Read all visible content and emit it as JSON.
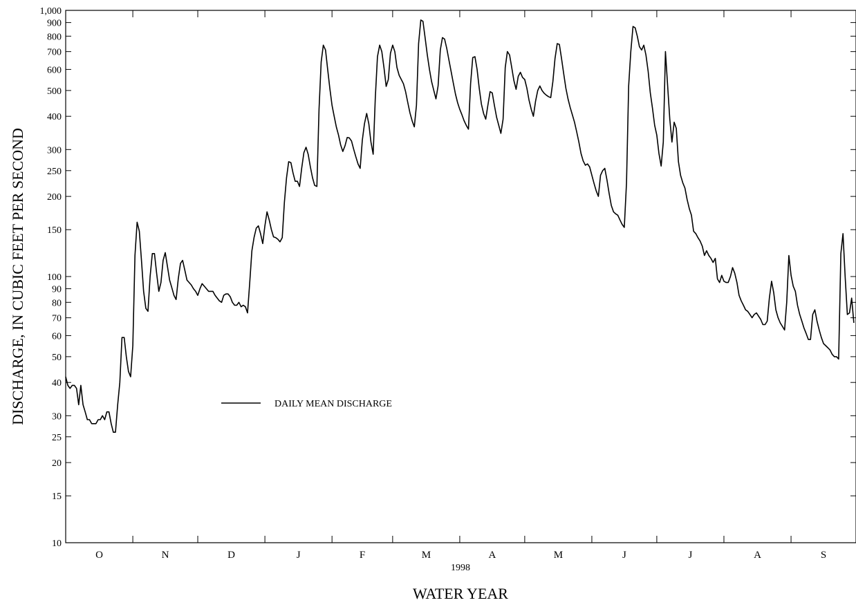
{
  "chart_data": {
    "type": "line",
    "title": "",
    "xlabel": "WATER YEAR",
    "ylabel": "DISCHARGE, IN CUBIC FEET PER SECOND",
    "year_label": "1998",
    "y_scale": "log",
    "ylim": [
      10,
      1000
    ],
    "y_ticks": [
      10,
      15,
      20,
      25,
      30,
      40,
      50,
      60,
      70,
      80,
      90,
      100,
      150,
      200,
      250,
      300,
      400,
      500,
      600,
      700,
      800,
      900,
      1000
    ],
    "y_tick_labels": [
      "10",
      "15",
      "20",
      "25",
      "30",
      "40",
      "50",
      "60",
      "70",
      "80",
      "90",
      "100",
      "150",
      "200",
      "250",
      "300",
      "400",
      "500",
      "600",
      "700",
      "800",
      "900",
      "1,000"
    ],
    "x_unit": "day of water year (Oct 1, 1997 = 0)",
    "xlim": [
      0,
      365
    ],
    "month_boundaries": [
      0,
      31,
      61,
      92,
      123,
      151,
      182,
      212,
      243,
      273,
      304,
      335,
      365
    ],
    "month_labels": [
      "O",
      "N",
      "D",
      "J",
      "F",
      "M",
      "A",
      "M",
      "J",
      "J",
      "A",
      "S"
    ],
    "grid": false,
    "legend_placement": "center-left",
    "series": [
      {
        "name": "DAILY MEAN DISCHARGE",
        "x": [
          0,
          1,
          2,
          3,
          4,
          5,
          6,
          7,
          8,
          9,
          10,
          11,
          12,
          13,
          14,
          15,
          16,
          17,
          18,
          19,
          20,
          21,
          22,
          23,
          24,
          25,
          26,
          27,
          28,
          29,
          30,
          31,
          32,
          33,
          34,
          35,
          36,
          37,
          38,
          39,
          40,
          41,
          42,
          43,
          44,
          45,
          46,
          47,
          48,
          49,
          50,
          51,
          52,
          53,
          54,
          55,
          56,
          57,
          58,
          59,
          60,
          61,
          62,
          63,
          64,
          65,
          66,
          67,
          68,
          69,
          70,
          71,
          72,
          73,
          74,
          75,
          76,
          77,
          78,
          79,
          80,
          81,
          82,
          83,
          84,
          85,
          86,
          87,
          88,
          89,
          90,
          91,
          92,
          93,
          94,
          95,
          96,
          97,
          98,
          99,
          100,
          101,
          102,
          103,
          104,
          105,
          106,
          107,
          108,
          109,
          110,
          111,
          112,
          113,
          114,
          115,
          116,
          117,
          118,
          119,
          120,
          121,
          122,
          123,
          124,
          125,
          126,
          127,
          128,
          129,
          130,
          131,
          132,
          133,
          134,
          135,
          136,
          137,
          138,
          139,
          140,
          141,
          142,
          143,
          144,
          145,
          146,
          147,
          148,
          149,
          150,
          151,
          152,
          153,
          154,
          155,
          156,
          157,
          158,
          159,
          160,
          161,
          162,
          163,
          164,
          165,
          166,
          167,
          168,
          169,
          170,
          171,
          172,
          173,
          174,
          175,
          176,
          177,
          178,
          179,
          180,
          181,
          182,
          183,
          184,
          185,
          186,
          187,
          188,
          189,
          190,
          191,
          192,
          193,
          194,
          195,
          196,
          197,
          198,
          199,
          200,
          201,
          202,
          203,
          204,
          205,
          206,
          207,
          208,
          209,
          210,
          211,
          212,
          213,
          214,
          215,
          216,
          217,
          218,
          219,
          220,
          221,
          222,
          223,
          224,
          225,
          226,
          227,
          228,
          229,
          230,
          231,
          232,
          233,
          234,
          235,
          236,
          237,
          238,
          239,
          240,
          241,
          242,
          243,
          244,
          245,
          246,
          247,
          248,
          249,
          250,
          251,
          252,
          253,
          254,
          255,
          256,
          257,
          258,
          259,
          260,
          261,
          262,
          263,
          264,
          265,
          266,
          267,
          268,
          269,
          270,
          271,
          272,
          273,
          274,
          275,
          276,
          277,
          278,
          279,
          280,
          281,
          282,
          283,
          284,
          285,
          286,
          287,
          288,
          289,
          290,
          291,
          292,
          293,
          294,
          295,
          296,
          297,
          298,
          299,
          300,
          301,
          302,
          303,
          304,
          305,
          306,
          307,
          308,
          309,
          310,
          311,
          312,
          313,
          314,
          315,
          316,
          317,
          318,
          319,
          320,
          321,
          322,
          323,
          324,
          325,
          326,
          327,
          328,
          329,
          330,
          331,
          332,
          333,
          334,
          335,
          336,
          337,
          338,
          339,
          340,
          341,
          342,
          343,
          344,
          345,
          346,
          347,
          348,
          349,
          350,
          351,
          352,
          353,
          354,
          355,
          356,
          357,
          358,
          359,
          360,
          361,
          362,
          363,
          364
        ],
        "values": [
          42,
          39,
          38,
          39,
          39,
          38,
          33,
          39,
          33,
          31,
          29,
          29,
          28,
          28,
          28,
          29,
          29,
          30,
          29,
          31,
          31,
          28,
          26,
          26,
          33,
          40,
          59,
          59,
          50,
          44,
          42,
          55,
          120,
          160,
          148,
          115,
          88,
          76,
          74,
          100,
          122,
          122,
          103,
          88,
          95,
          115,
          123,
          109,
          97,
          91,
          85,
          82,
          98,
          112,
          115,
          106,
          97,
          95,
          93,
          90,
          88,
          85,
          90,
          94,
          92,
          90,
          88,
          88,
          88,
          85,
          83,
          81,
          80,
          85,
          86,
          86,
          84,
          80,
          78,
          78,
          80,
          77,
          78,
          77,
          73,
          95,
          125,
          140,
          152,
          155,
          145,
          133,
          155,
          175,
          163,
          150,
          141,
          140,
          138,
          135,
          140,
          190,
          235,
          270,
          268,
          245,
          228,
          228,
          218,
          255,
          292,
          306,
          288,
          258,
          235,
          220,
          218,
          425,
          640,
          740,
          710,
          600,
          510,
          440,
          400,
          365,
          340,
          312,
          295,
          310,
          333,
          332,
          323,
          301,
          282,
          265,
          255,
          325,
          375,
          410,
          375,
          320,
          288,
          470,
          670,
          740,
          700,
          610,
          518,
          550,
          690,
          740,
          700,
          610,
          570,
          550,
          530,
          495,
          450,
          412,
          385,
          365,
          440,
          750,
          920,
          910,
          790,
          680,
          600,
          540,
          500,
          465,
          520,
          710,
          790,
          780,
          720,
          650,
          590,
          535,
          485,
          450,
          425,
          405,
          385,
          370,
          358,
          530,
          665,
          670,
          600,
          510,
          445,
          410,
          390,
          440,
          495,
          490,
          440,
          397,
          370,
          345,
          390,
          610,
          700,
          680,
          610,
          545,
          505,
          565,
          585,
          560,
          550,
          510,
          460,
          425,
          400,
          455,
          500,
          520,
          500,
          488,
          480,
          474,
          470,
          540,
          660,
          750,
          745,
          660,
          580,
          510,
          465,
          432,
          405,
          380,
          350,
          320,
          290,
          272,
          262,
          265,
          258,
          240,
          224,
          210,
          200,
          240,
          250,
          255,
          230,
          205,
          185,
          175,
          172,
          170,
          163,
          157,
          153,
          225,
          520,
          700,
          870,
          860,
          800,
          730,
          710,
          740,
          680,
          590,
          490,
          430,
          370,
          340,
          290,
          260,
          320,
          700,
          520,
          390,
          320,
          380,
          360,
          270,
          240,
          225,
          215,
          195,
          180,
          170,
          148,
          145,
          140,
          136,
          130,
          120,
          125,
          120,
          117,
          113,
          117,
          98,
          95,
          101,
          96,
          95,
          95,
          100,
          108,
          103,
          95,
          85,
          81,
          78,
          75,
          74,
          72,
          70,
          72,
          73,
          71,
          69,
          66,
          66,
          68,
          83,
          96,
          87,
          75,
          70,
          67,
          65,
          63,
          80,
          120,
          101,
          92,
          88,
          78,
          72,
          68,
          64,
          61,
          58,
          58,
          72,
          75,
          68,
          63,
          59,
          56,
          55,
          54,
          53,
          51,
          50,
          50,
          49,
          122,
          145,
          100,
          72,
          73,
          83,
          67
        ]
      }
    ]
  }
}
